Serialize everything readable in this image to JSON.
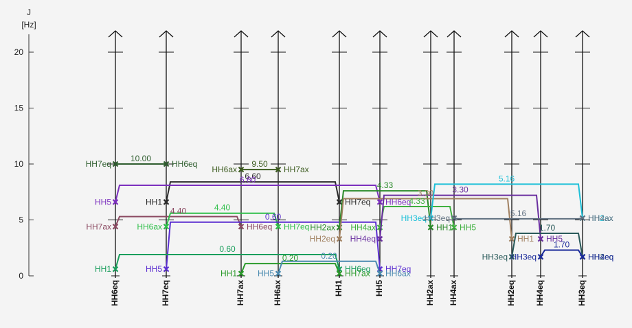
{
  "chart_data": {
    "type": "coupling-tree",
    "y_axis": {
      "label_line1": "J",
      "label_line2": "[Hz]",
      "ylim": [
        0,
        22
      ],
      "ticks": [
        0,
        5,
        10,
        15,
        20
      ]
    },
    "columns": [
      {
        "id": "HH6eq",
        "label": "HH6eq"
      },
      {
        "id": "HH7eq",
        "label": "HH7eq"
      },
      {
        "id": "HH7ax",
        "label": "HH7ax"
      },
      {
        "id": "HH6ax",
        "label": "HH6ax"
      },
      {
        "id": "HH1",
        "label": "HH1"
      },
      {
        "id": "HH5",
        "label": "HH5"
      },
      {
        "id": "HH2ax",
        "label": "HH2ax"
      },
      {
        "id": "HH4ax",
        "label": "HH4ax"
      },
      {
        "id": "HH2eq",
        "label": "HH2eq"
      },
      {
        "id": "HH4eq",
        "label": "HH4eq"
      },
      {
        "id": "HH3eq",
        "label": "HH3eq"
      }
    ],
    "couplings": [
      {
        "from": "HH6eq",
        "to": "HH7eq",
        "j": 10.0,
        "label": "10.00",
        "color": "#2e5d2e",
        "lf": "HH7eq",
        "lt": "HH6eq",
        "bar": 10.0
      },
      {
        "from": "HH7ax",
        "to": "HH6ax",
        "j": 9.5,
        "label": "9.50",
        "color": "#3d5c20",
        "lf": "HH6ax",
        "lt": "HH7ax",
        "bar": 9.5
      },
      {
        "from": "HH7eq",
        "to": "HH1",
        "j": 6.6,
        "label": "6.60",
        "color": "#2b2b2b",
        "lf": "HH1",
        "lt": "HH7eq",
        "bar": 8.4
      },
      {
        "from": "HH6eq",
        "to": "HH5",
        "j": 6.6,
        "label": "6.60",
        "color": "#7b2fbe",
        "lf": "HH5",
        "lt": "HH6eq",
        "bar": 8.1
      },
      {
        "from": "HH6eq",
        "to": "HH7ax",
        "j": 4.4,
        "label": "4.40",
        "color": "#8b4a62",
        "lf": "HH7ax",
        "lt": "HH6eq",
        "bar": 5.3
      },
      {
        "from": "HH7eq",
        "to": "HH6ax",
        "j": 4.4,
        "label": "4.40",
        "color": "#2fbf4a",
        "lf": "HH6ax",
        "lt": "HH7eq",
        "bar": 5.6
      },
      {
        "from": "HH7eq",
        "to": "HH5",
        "j": 0.6,
        "label": "0.60",
        "color": "#5b2ed0",
        "lf": "HH5",
        "lt": "HH7eq",
        "bar": 4.8
      },
      {
        "from": "HH6eq",
        "to": "HH1",
        "j": 0.6,
        "label": "0.60",
        "color": "#1a9e5c",
        "lf": "HH1",
        "lt": "HH6eq",
        "bar": 1.9
      },
      {
        "from": "HH7ax",
        "to": "HH1",
        "j": 0.2,
        "label": "0.20",
        "color": "#2a9a2a",
        "lf": "HH1",
        "lt": "HH7ax",
        "bar": 1.1
      },
      {
        "from": "HH6ax",
        "to": "HH5",
        "j": 0.2,
        "label": "0.20",
        "color": "#4a8ab0",
        "lf": "HH5",
        "lt": "HH6ax",
        "bar": 1.3
      },
      {
        "from": "HH1",
        "to": "HH2ax",
        "j": 4.33,
        "label": "4.33",
        "color": "#2a8a2a",
        "lf": "HH2ax",
        "lt": "HH1",
        "bar": 7.6
      },
      {
        "from": "HH5",
        "to": "HH4ax",
        "j": 4.33,
        "label": "4.33",
        "color": "#3fb03f",
        "lf": "HH4ax",
        "lt": "HH5",
        "bar": 6.2
      },
      {
        "from": "HH1",
        "to": "HH2eq",
        "j": 3.3,
        "label": "3.30",
        "color": "#a08060",
        "lf": "HH2eq",
        "lt": "HH1",
        "bar": 6.9
      },
      {
        "from": "HH5",
        "to": "HH4eq",
        "j": 3.3,
        "label": "3.30",
        "color": "#6a2fa0",
        "lf": "HH4eq",
        "lt": "HH5",
        "bar": 7.2
      },
      {
        "from": "HH2ax",
        "to": "HH3eq",
        "j": 5.16,
        "label": "5.16",
        "color": "#1ec0d8",
        "lf": "HH3eq",
        "lt": "HH2ax",
        "bar": 8.2
      },
      {
        "from": "HH4ax",
        "to": "HH3eq",
        "j": 5.16,
        "label": "5.16",
        "color": "#607080",
        "lf": "HH3eq",
        "lt": "HH4ax",
        "bar": 5.1
      },
      {
        "from": "HH2eq",
        "to": "HH3eq",
        "j": 1.7,
        "label": "1.70",
        "color": "#2a5a5a",
        "lf": "HH3eq",
        "lt": "HH2eq",
        "bar": 3.8
      },
      {
        "from": "HH4eq",
        "to": "HH3eq",
        "j": 1.7,
        "label": "1.70",
        "color": "#1a2a9a",
        "lf": "HH3eq",
        "lt": "HH4eq",
        "bar": 2.3
      }
    ]
  }
}
